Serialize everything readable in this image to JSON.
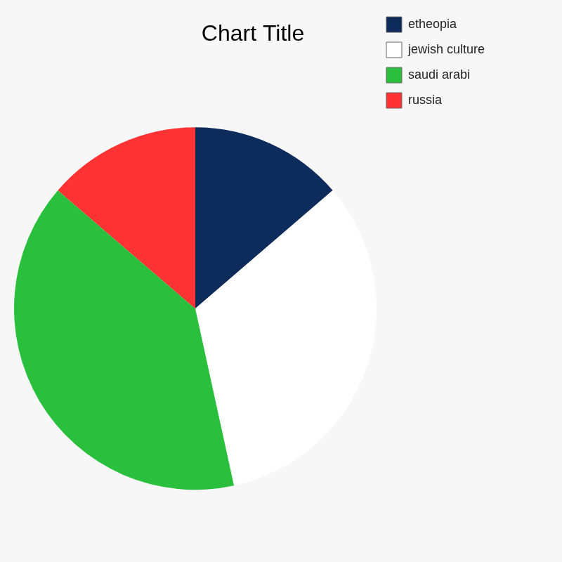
{
  "chart_data": {
    "type": "pie",
    "title": "Chart Title",
    "categories": [
      "etheopia",
      "jewish culture",
      "saudi arabi",
      "russia"
    ],
    "values": [
      1,
      2.4,
      2.9,
      1
    ],
    "colors": [
      "#0d2b5b",
      "#ffffff",
      "#2bbf3e",
      "#ff3333"
    ],
    "legend": "right"
  }
}
